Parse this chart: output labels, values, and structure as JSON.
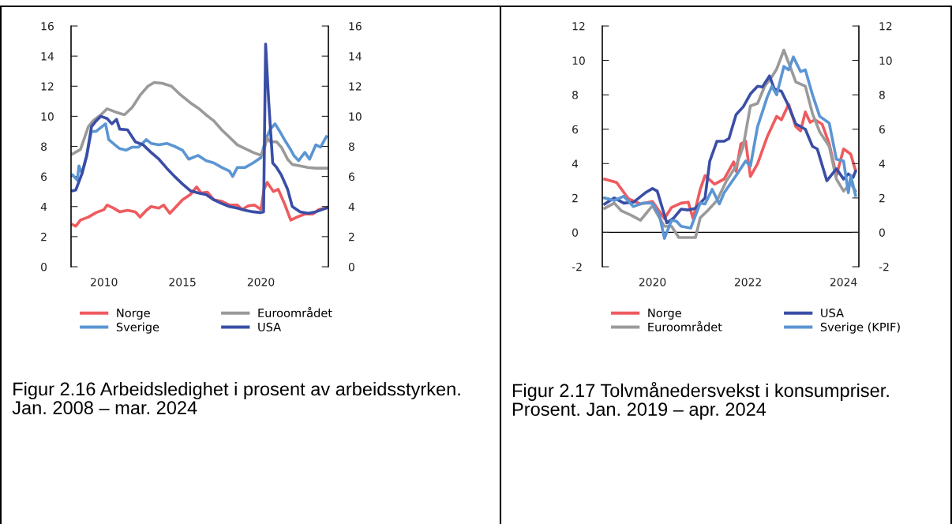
{
  "chart_data": [
    {
      "type": "line",
      "title": "Figur 2.16 Arbeidsledighet i prosent av arbeidsstyrken. Jan. 2008 – mar. 2024",
      "xlim": [
        2007.9,
        2024.3
      ],
      "xticks": [
        2010,
        2015,
        2020
      ],
      "ylim": [
        0,
        16
      ],
      "yticks": [
        0,
        2,
        4,
        6,
        8,
        10,
        12,
        14,
        16
      ],
      "y2lim": [
        0,
        16
      ],
      "y2ticks": [
        0,
        2,
        4,
        6,
        8,
        10,
        12,
        14,
        16
      ],
      "legend": "bottom",
      "series": [
        {
          "name": "Norge",
          "color": "#ef5b5f",
          "x": [
            2008,
            2008.2,
            2008.5,
            2009,
            2009.5,
            2010,
            2010.2,
            2010.6,
            2011,
            2011.5,
            2012,
            2012.3,
            2012.7,
            2013,
            2013.5,
            2013.8,
            2014.2,
            2014.6,
            2015,
            2015.5,
            2015.9,
            2016.2,
            2016.6,
            2017,
            2017.5,
            2018,
            2018.5,
            2018.8,
            2019.2,
            2019.6,
            2020.0,
            2020.2,
            2020.4,
            2020.8,
            2021.1,
            2021.5,
            2021.9,
            2022.3,
            2022.8,
            2023.3,
            2023.7,
            2024.17
          ],
          "values": [
            2.8,
            2.7,
            3.1,
            3.3,
            3.6,
            3.8,
            4.1,
            3.9,
            3.65,
            3.75,
            3.65,
            3.3,
            3.75,
            4.0,
            3.9,
            4.1,
            3.55,
            4.0,
            4.45,
            4.8,
            5.3,
            4.9,
            4.95,
            4.45,
            4.35,
            4.1,
            4.1,
            3.8,
            4.05,
            4.1,
            3.8,
            5.15,
            5.6,
            5.0,
            5.15,
            4.2,
            3.1,
            3.3,
            3.5,
            3.5,
            3.8,
            3.9
          ]
        },
        {
          "name": "Sverige",
          "color": "#5b95d3",
          "x": [
            2008,
            2008.3,
            2008.4,
            2008.6,
            2008.9,
            2009.2,
            2009.5,
            2009.8,
            2010.1,
            2010.3,
            2010.7,
            2011.0,
            2011.4,
            2011.8,
            2012.2,
            2012.7,
            2013.0,
            2013.5,
            2014.0,
            2014.5,
            2015,
            2015.4,
            2016,
            2016.5,
            2017,
            2017.5,
            2018,
            2018.2,
            2018.5,
            2019,
            2019.5,
            2020.0,
            2020.3,
            2020.6,
            2020.9,
            2021.2,
            2021.5,
            2021.8,
            2022.1,
            2022.4,
            2022.8,
            2023.1,
            2023.5,
            2023.8,
            2024.17
          ],
          "values": [
            6.1,
            5.75,
            6.7,
            6.2,
            7.4,
            9.0,
            9.0,
            9.25,
            9.5,
            8.45,
            8.1,
            7.85,
            7.75,
            7.95,
            7.95,
            8.45,
            8.2,
            8.1,
            8.2,
            8.0,
            7.75,
            7.15,
            7.4,
            7.05,
            6.9,
            6.6,
            6.35,
            6.0,
            6.6,
            6.6,
            6.9,
            7.25,
            8.45,
            9.15,
            9.5,
            9.0,
            8.45,
            7.95,
            7.4,
            7.05,
            7.6,
            7.15,
            8.1,
            7.95,
            8.65
          ]
        },
        {
          "name": "Euroområdet",
          "color": "#9a9a9a",
          "x": [
            2008,
            2008.5,
            2009,
            2009.3,
            2009.8,
            2010.2,
            2010.7,
            2011.3,
            2011.8,
            2012.3,
            2012.8,
            2013.2,
            2013.7,
            2014.3,
            2014.8,
            2015.5,
            2016,
            2016.5,
            2017,
            2017.5,
            2018,
            2018.5,
            2019,
            2019.5,
            2020.0,
            2020.2,
            2020.4,
            2020.6,
            2021,
            2021.3,
            2021.7,
            2022,
            2022.5,
            2023,
            2023.5,
            2024.17
          ],
          "values": [
            7.5,
            7.8,
            9.3,
            9.7,
            10.1,
            10.5,
            10.3,
            10.1,
            10.6,
            11.4,
            12.0,
            12.25,
            12.2,
            12.0,
            11.5,
            10.9,
            10.55,
            10.1,
            9.7,
            9.1,
            8.6,
            8.1,
            7.85,
            7.6,
            7.4,
            7.8,
            8.55,
            8.3,
            8.3,
            7.95,
            7.15,
            6.8,
            6.7,
            6.6,
            6.55,
            6.55
          ]
        },
        {
          "name": "USA",
          "color": "#3a4ea6",
          "x": [
            2008,
            2008.2,
            2008.6,
            2008.9,
            2009.2,
            2009.5,
            2009.8,
            2010.2,
            2010.5,
            2010.8,
            2011.0,
            2011.5,
            2012.0,
            2012.5,
            2013,
            2013.5,
            2014,
            2014.5,
            2015,
            2015.5,
            2016,
            2016.5,
            2017,
            2017.5,
            2018,
            2018.5,
            2019,
            2019.5,
            2020.0,
            2020.17,
            2020.3,
            2020.5,
            2020.75,
            2021.0,
            2021.3,
            2021.7,
            2022,
            2022.5,
            2023,
            2023.5,
            2024.17
          ],
          "values": [
            5.05,
            5.1,
            6.2,
            7.4,
            9.3,
            9.7,
            10.0,
            9.85,
            9.5,
            9.8,
            9.15,
            9.1,
            8.3,
            8.1,
            7.6,
            7.15,
            6.55,
            6.0,
            5.5,
            5.05,
            4.9,
            4.8,
            4.45,
            4.2,
            4.0,
            3.9,
            3.75,
            3.65,
            3.6,
            3.65,
            14.8,
            10.9,
            6.9,
            6.6,
            6.1,
            5.15,
            4.0,
            3.65,
            3.55,
            3.65,
            3.9
          ]
        }
      ]
    },
    {
      "type": "line",
      "title": "Figur 2.17 Tolvmånedersvekst i konsumpriser. Prosent. Jan. 2019 – apr. 2024",
      "xlim": [
        2018.95,
        2024.32
      ],
      "xticks": [
        2020,
        2022,
        2024
      ],
      "ylim": [
        -2,
        12
      ],
      "yticks": [
        -2,
        0,
        2,
        4,
        6,
        8,
        10,
        12
      ],
      "y2lim": [
        -2,
        12
      ],
      "y2ticks": [
        -2,
        0,
        2,
        4,
        6,
        8,
        10,
        12
      ],
      "legend": "bottom",
      "ref_lines": [
        {
          "axis": "y",
          "value": 0,
          "color": "#000000"
        }
      ],
      "series": [
        {
          "name": "Norge",
          "color": "#ef5b5f",
          "x": [
            2019.0,
            2019.25,
            2019.5,
            2019.75,
            2020.0,
            2020.25,
            2020.4,
            2020.6,
            2020.75,
            2020.85,
            2021.0,
            2021.1,
            2021.3,
            2021.5,
            2021.7,
            2021.75,
            2021.85,
            2021.95,
            2022.05,
            2022.2,
            2022.4,
            2022.6,
            2022.7,
            2022.85,
            2023.0,
            2023.1,
            2023.2,
            2023.3,
            2023.4,
            2023.55,
            2023.7,
            2023.85,
            2024.0,
            2024.15,
            2024.25
          ],
          "values": [
            3.1,
            2.9,
            1.95,
            1.65,
            1.8,
            0.8,
            1.45,
            1.7,
            1.75,
            0.8,
            2.5,
            3.3,
            2.8,
            3.1,
            4.1,
            3.55,
            5.15,
            5.3,
            3.25,
            4.0,
            5.55,
            6.75,
            6.55,
            7.45,
            6.15,
            5.9,
            7.0,
            6.4,
            6.55,
            6.3,
            5.15,
            3.3,
            4.85,
            4.55,
            3.6
          ]
        },
        {
          "name": "Euroområdet",
          "color": "#9a9a9a",
          "x": [
            2019.0,
            2019.2,
            2019.35,
            2019.55,
            2019.75,
            2020.0,
            2020.25,
            2020.4,
            2020.55,
            2020.75,
            2020.9,
            2021.0,
            2021.15,
            2021.35,
            2021.55,
            2021.75,
            2021.9,
            2022.05,
            2022.2,
            2022.35,
            2022.5,
            2022.6,
            2022.75,
            2022.9,
            2023.0,
            2023.2,
            2023.35,
            2023.5,
            2023.7,
            2023.85,
            2024.0,
            2024.15,
            2024.25
          ],
          "values": [
            1.4,
            1.7,
            1.25,
            1.0,
            0.7,
            1.55,
            0.35,
            0.35,
            -0.3,
            -0.3,
            -0.3,
            0.85,
            1.25,
            1.85,
            3.0,
            3.85,
            5.0,
            7.35,
            7.5,
            8.5,
            9.05,
            9.5,
            10.6,
            9.5,
            8.75,
            8.5,
            6.9,
            5.85,
            5.0,
            3.1,
            2.4,
            2.85,
            2.4
          ]
        },
        {
          "name": "USA",
          "color": "#3a4ea6",
          "x": [
            2019.0,
            2019.2,
            2019.4,
            2019.6,
            2019.85,
            2020.0,
            2020.1,
            2020.3,
            2020.45,
            2020.6,
            2020.75,
            2020.9,
            2021.1,
            2021.2,
            2021.35,
            2021.5,
            2021.6,
            2021.75,
            2021.9,
            2022.05,
            2022.2,
            2022.3,
            2022.45,
            2022.55,
            2022.7,
            2022.85,
            2023.0,
            2023.2,
            2023.35,
            2023.45,
            2023.65,
            2023.85,
            2024.0,
            2024.1,
            2024.2,
            2024.25
          ],
          "values": [
            1.65,
            2.0,
            1.7,
            1.75,
            2.3,
            2.55,
            2.4,
            0.55,
            0.85,
            1.35,
            1.3,
            1.4,
            2.0,
            4.15,
            5.3,
            5.3,
            5.45,
            6.85,
            7.3,
            8.05,
            8.5,
            8.45,
            9.1,
            8.35,
            8.2,
            7.35,
            6.3,
            6.0,
            5.0,
            4.85,
            3.0,
            3.7,
            3.1,
            3.4,
            3.2,
            3.55
          ]
        },
        {
          "name": "Sverige (KPIF)",
          "color": "#5b95d3",
          "x": [
            2019.0,
            2019.2,
            2019.4,
            2019.6,
            2019.8,
            2020.0,
            2020.15,
            2020.25,
            2020.4,
            2020.5,
            2020.6,
            2020.8,
            2021.0,
            2021.1,
            2021.25,
            2021.4,
            2021.5,
            2021.75,
            2021.95,
            2022.05,
            2022.2,
            2022.4,
            2022.5,
            2022.6,
            2022.75,
            2022.85,
            2022.95,
            2023.1,
            2023.2,
            2023.35,
            2023.5,
            2023.7,
            2023.85,
            2024.0,
            2024.1,
            2024.15,
            2024.25
          ],
          "values": [
            2.0,
            1.85,
            2.1,
            1.5,
            1.7,
            1.7,
            0.95,
            -0.35,
            0.7,
            0.65,
            0.35,
            0.25,
            1.7,
            1.65,
            2.5,
            1.65,
            2.3,
            3.3,
            4.15,
            3.85,
            6.15,
            7.85,
            8.5,
            8.0,
            9.65,
            9.45,
            10.2,
            9.35,
            9.45,
            8.0,
            6.75,
            6.35,
            4.25,
            4.15,
            2.3,
            3.3,
            2.15
          ]
        }
      ]
    }
  ]
}
